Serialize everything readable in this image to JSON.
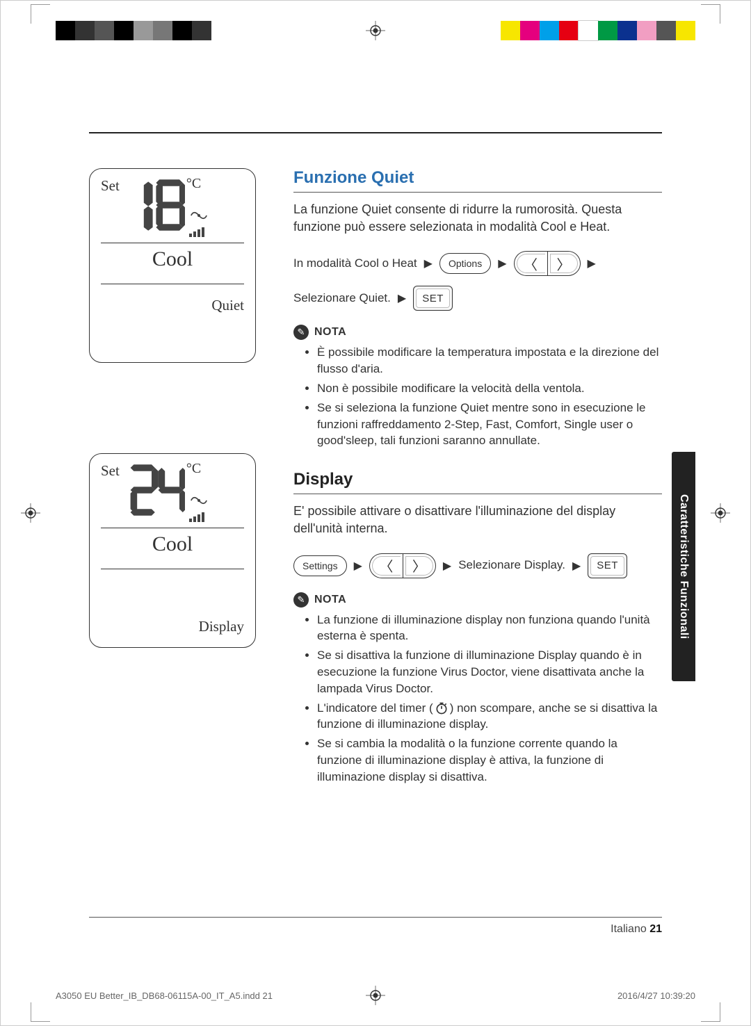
{
  "print": {
    "colorbar_left": [
      "#000000",
      "#333333",
      "#555555",
      "#000000",
      "#999999",
      "#777777",
      "#000000",
      "#333333"
    ],
    "colorbar_right": [
      "#f7e600",
      "#e5007e",
      "#00a0e9",
      "#e60012",
      "#ffffff",
      "#009944",
      "#0b318f",
      "#f19ec2",
      "#555555",
      "#f7e600"
    ],
    "footer_left": "A3050 EU Better_IB_DB68-06115A-00_IT_A5.indd   21",
    "footer_right": "2016/4/27   10:39:20"
  },
  "side_tab": "Caratteristiche Funzionali",
  "footer": {
    "lang": "Italiano",
    "page": "21"
  },
  "panels": {
    "quiet": {
      "set": "Set",
      "temp_tens": "1",
      "temp_ones": "8",
      "unit": "°C",
      "mode": "Cool",
      "sub": "Quiet"
    },
    "display": {
      "set": "Set",
      "temp_tens": "2",
      "temp_ones": "4",
      "unit": "°C",
      "mode": "Cool",
      "sub": "Display"
    }
  },
  "sections": {
    "quiet": {
      "heading": "Funzione Quiet",
      "intro": "La funzione Quiet consente di ridurre la rumorosità. Questa funzione può essere selezionata in modalità Cool e Heat.",
      "step1_label": "In modalità Cool o Heat",
      "options_key": "Options",
      "step2_label": "Selezionare Quiet.",
      "set_key": "SET",
      "nota": "NOTA",
      "notes": [
        "È possibile modificare la temperatura impostata e la direzione del flusso d'aria.",
        "Non è possibile modificare la velocità della ventola.",
        "Se si seleziona la funzione Quiet mentre sono in esecuzione le funzioni raffreddamento 2-Step, Fast, Comfort, Single user o good'sleep, tali funzioni saranno annullate."
      ]
    },
    "display": {
      "heading": "Display",
      "intro": "E' possibile attivare o disattivare l'illuminazione del display dell'unità interna.",
      "settings_key": "Settings",
      "select_label": "Selezionare Display.",
      "set_key": "SET",
      "nota": "NOTA",
      "note1": "La funzione di illuminazione display non funziona quando l'unità esterna è spenta.",
      "note2": "Se si disattiva la funzione di illuminazione Display quando è in esecuzione la funzione Virus Doctor, viene disattivata anche la lampada Virus Doctor.",
      "note3a": "L'indicatore del timer (",
      "note3b": ") non scompare, anche se si disattiva la funzione di illuminazione display.",
      "note4": "Se si cambia la modalità o la funzione corrente quando la funzione di illuminazione display è attiva, la funzione di illuminazione display si disattiva."
    }
  },
  "glyphs": {
    "arrow": "▶",
    "chev_left": "〈",
    "chev_right": "〉"
  }
}
